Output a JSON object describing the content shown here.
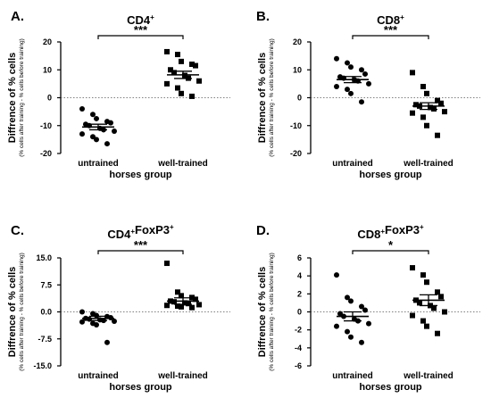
{
  "chart_data": [
    {
      "type": "scatter",
      "panel": "A.",
      "title": "CD4",
      "title_sup": "+",
      "title_parts": [],
      "ylabel": "Diffrence of % cells",
      "ylabel_sub": "(% cells after training - % cells before training)",
      "xlabel": "horses group",
      "categories": [
        "untrained",
        "well-trained"
      ],
      "ylim": [
        -20,
        20
      ],
      "yticks": [
        "-20",
        "-10",
        "0",
        "10",
        "20"
      ],
      "significance": "***",
      "groups": [
        {
          "name": "untrained",
          "marker": "circle",
          "mean": -10.5,
          "sem": 1.0,
          "values": [
            -4,
            -6,
            -7.5,
            -8.5,
            -9,
            -9.5,
            -10,
            -11,
            -11.5,
            -12,
            -13,
            -14,
            -15,
            -16.5
          ]
        },
        {
          "name": "well-trained",
          "marker": "square",
          "mean": 8.2,
          "sem": 1.3,
          "values": [
            16.5,
            15.5,
            13,
            12,
            11.5,
            10,
            9,
            8,
            7,
            6,
            5,
            3.5,
            1.5,
            0.5
          ]
        }
      ]
    },
    {
      "type": "scatter",
      "panel": "B.",
      "title": "CD8",
      "title_sup": "+",
      "title_parts": [],
      "ylabel": "Diffrence of % cells",
      "ylabel_sub": "(% cells after training - % cells before training)",
      "xlabel": "horses group",
      "categories": [
        "untrained",
        "well-trained"
      ],
      "ylim": [
        -20,
        20
      ],
      "yticks": [
        "-20",
        "-10",
        "0",
        "10",
        "20"
      ],
      "significance": "***",
      "groups": [
        {
          "name": "untrained",
          "marker": "circle",
          "mean": 6.5,
          "sem": 1.1,
          "values": [
            14,
            12.5,
            11,
            10,
            8.5,
            7.5,
            7,
            6.5,
            6,
            5,
            4,
            3,
            1.5,
            -1.5
          ]
        },
        {
          "name": "well-trained",
          "marker": "square",
          "mean": -3,
          "sem": 1.2,
          "values": [
            9,
            4,
            1.5,
            -1,
            -2,
            -2.5,
            -3,
            -3.5,
            -4,
            -5,
            -5.5,
            -7,
            -10,
            -13.5
          ]
        }
      ]
    },
    {
      "type": "scatter",
      "panel": "C.",
      "title": "",
      "title_sup": "",
      "title_parts": [
        {
          "t": "CD4",
          "sup": false
        },
        {
          "t": "+",
          "sup": true
        },
        {
          "t": "FoxP3",
          "sup": false
        },
        {
          "t": "+",
          "sup": true
        }
      ],
      "ylabel": "Diffrence of % cells",
      "ylabel_sub": "(% cells after training - % cells before training)",
      "xlabel": "horses group",
      "categories": [
        "untrained",
        "well-trained"
      ],
      "ylim": [
        -15,
        15
      ],
      "yticks": [
        "-15.0",
        "-7.5",
        "0.0",
        "7.5",
        "15.0"
      ],
      "significance": "***",
      "groups": [
        {
          "name": "untrained",
          "marker": "circle",
          "mean": -1.8,
          "sem": 0.6,
          "values": [
            0,
            -0.5,
            -1,
            -1.3,
            -1.6,
            -1.8,
            -2,
            -2.2,
            -2.4,
            -2.6,
            -2.8,
            -3.2,
            -3.6,
            -8.5
          ]
        },
        {
          "name": "well-trained",
          "marker": "square",
          "mean": 3,
          "sem": 0.9,
          "values": [
            13.5,
            5.5,
            4.5,
            4,
            3.5,
            3,
            2.8,
            2.5,
            2.3,
            2,
            1.8,
            1.6,
            1.4,
            1.2
          ]
        }
      ]
    },
    {
      "type": "scatter",
      "panel": "D.",
      "title": "",
      "title_sup": "",
      "title_parts": [
        {
          "t": "CD8",
          "sup": false
        },
        {
          "t": "+",
          "sup": true
        },
        {
          "t": "FoxP3",
          "sup": false
        },
        {
          "t": "+",
          "sup": true
        }
      ],
      "ylabel": "Diffrence of % cells",
      "ylabel_sub": "(% cells after training - % cells before training)",
      "xlabel": "horses group",
      "categories": [
        "untrained",
        "well-trained"
      ],
      "ylim": [
        -6,
        6
      ],
      "yticks": [
        "-6",
        "-4",
        "-2",
        "0",
        "2",
        "4",
        "6"
      ],
      "significance": "*",
      "groups": [
        {
          "name": "untrained",
          "marker": "circle",
          "mean": -0.5,
          "sem": 0.5,
          "values": [
            4.1,
            1.6,
            1.2,
            0.6,
            0.2,
            -0.2,
            -0.5,
            -0.8,
            -1,
            -1.3,
            -1.6,
            -2.2,
            -2.8,
            -3.4
          ]
        },
        {
          "name": "well-trained",
          "marker": "square",
          "mean": 1.3,
          "sem": 0.6,
          "values": [
            4.9,
            4.1,
            3.3,
            2.2,
            1.7,
            1.3,
            1,
            0.7,
            0.4,
            0,
            -0.4,
            -1,
            -1.6,
            -2.4
          ]
        }
      ]
    }
  ]
}
